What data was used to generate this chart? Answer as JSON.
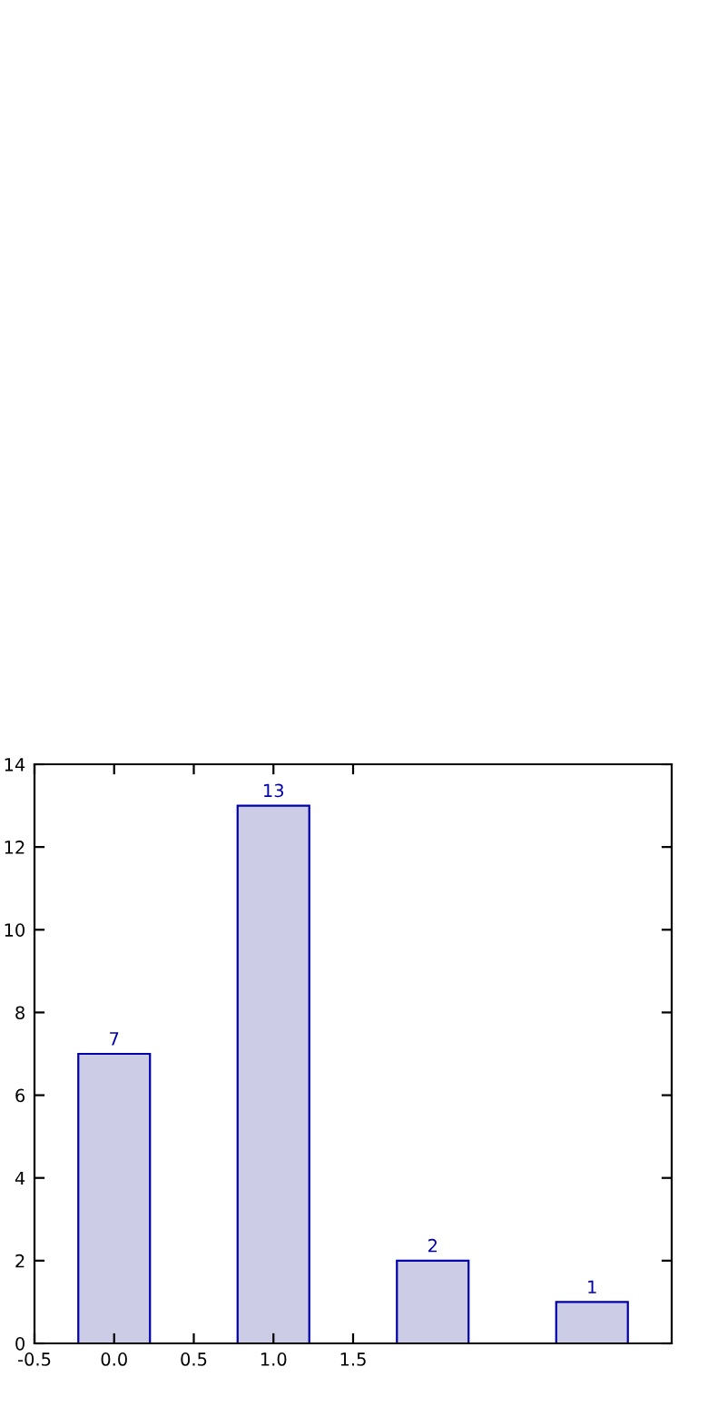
{
  "chart_data": {
    "type": "bar",
    "x": [
      0,
      1,
      2,
      3
    ],
    "values": [
      7,
      13,
      2,
      1
    ],
    "color": "#cccce6",
    "xlim": [
      -0.5,
      3.5
    ],
    "xticks": [
      -0.5,
      {
        "value": 0,
        "label": "0.0"
      },
      0.5,
      {
        "value": 1,
        "label": "1.0"
      },
      1.5
    ],
    "ylim": [
      0,
      14
    ],
    "yticks": [
      0,
      2,
      4,
      6,
      8,
      10,
      12,
      14
    ],
    "data_labels": true,
    "grid": false,
    "legend": false
  }
}
